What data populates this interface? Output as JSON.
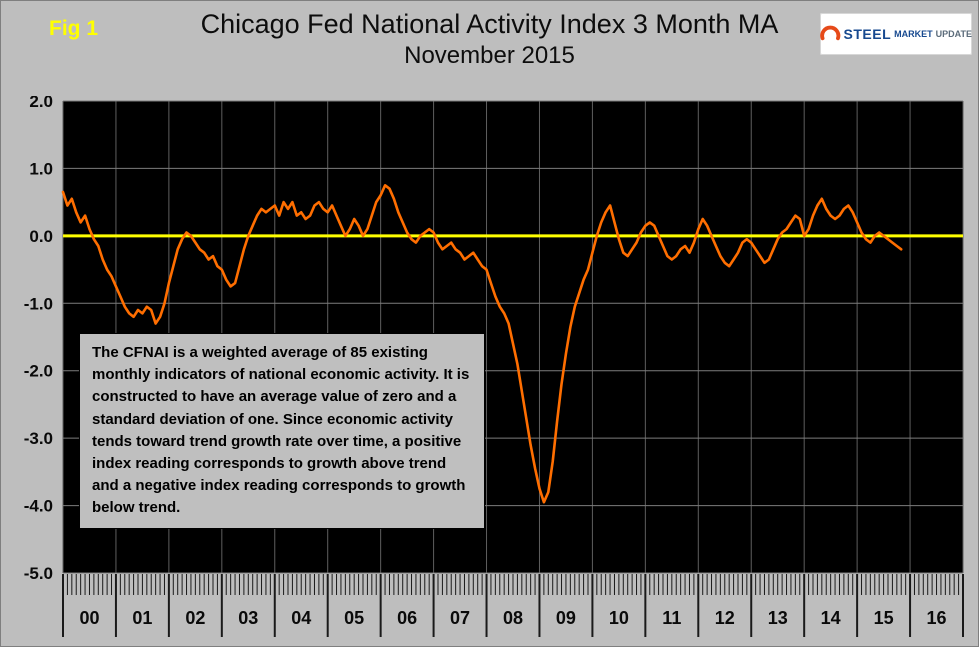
{
  "header": {
    "fig_label": "Fig 1",
    "title_line1": "Chicago Fed National Activity Index 3 Month MA",
    "title_line2": "November 2015",
    "logo": {
      "steel": "STEEL",
      "market": "MARKET",
      "update": "UPDATE"
    }
  },
  "annotation": {
    "text": "The CFNAI is a weighted average of 85 existing monthly indicators of national economic activity. It is constructed to have an average value of zero and a standard deviation of one. Since economic activity tends toward trend growth rate over time, a positive index reading corresponds to growth above trend and a negative index reading corresponds to growth below trend."
  },
  "chart_data": {
    "type": "line",
    "title": "Chicago Fed National Activity Index 3 Month MA",
    "subtitle": "November 2015",
    "ylim": [
      -5.0,
      2.0
    ],
    "y_ticks": [
      "2.0",
      "1.0",
      "0.0",
      "-1.0",
      "-2.0",
      "-3.0",
      "-4.0",
      "-5.0"
    ],
    "x_labels": [
      "00",
      "01",
      "02",
      "03",
      "04",
      "05",
      "06",
      "07",
      "08",
      "09",
      "10",
      "11",
      "12",
      "13",
      "14",
      "15",
      "16"
    ],
    "x_range_years": [
      2000,
      2017
    ],
    "grid": true,
    "legend": "none",
    "plot_bg": "#000000",
    "page_bg": "#BEBEBE",
    "grid_color_h": "#7d7d7d",
    "grid_color_v": "#5f5f5f",
    "zero_line_color": "#FFFF00",
    "line_color": "#FF6E00",
    "series": [
      {
        "name": "CFNAI 3 Month Moving Average",
        "start_year": 2000,
        "start_month": 1,
        "frequency": "monthly",
        "values": [
          0.65,
          0.45,
          0.55,
          0.35,
          0.2,
          0.3,
          0.1,
          -0.05,
          -0.15,
          -0.35,
          -0.5,
          -0.6,
          -0.75,
          -0.9,
          -1.05,
          -1.15,
          -1.2,
          -1.1,
          -1.15,
          -1.05,
          -1.1,
          -1.3,
          -1.2,
          -1.0,
          -0.7,
          -0.45,
          -0.2,
          -0.05,
          0.05,
          0.0,
          -0.1,
          -0.2,
          -0.25,
          -0.35,
          -0.3,
          -0.45,
          -0.5,
          -0.65,
          -0.75,
          -0.7,
          -0.45,
          -0.2,
          0.0,
          0.15,
          0.3,
          0.4,
          0.35,
          0.4,
          0.45,
          0.3,
          0.5,
          0.4,
          0.5,
          0.3,
          0.35,
          0.25,
          0.3,
          0.45,
          0.5,
          0.4,
          0.35,
          0.45,
          0.3,
          0.15,
          0.0,
          0.1,
          0.25,
          0.15,
          0.0,
          0.1,
          0.3,
          0.5,
          0.6,
          0.75,
          0.7,
          0.55,
          0.35,
          0.2,
          0.05,
          -0.05,
          -0.1,
          0.0,
          0.05,
          0.1,
          0.05,
          -0.1,
          -0.2,
          -0.15,
          -0.1,
          -0.2,
          -0.25,
          -0.35,
          -0.3,
          -0.25,
          -0.35,
          -0.45,
          -0.5,
          -0.7,
          -0.9,
          -1.05,
          -1.15,
          -1.3,
          -1.6,
          -1.9,
          -2.3,
          -2.7,
          -3.1,
          -3.45,
          -3.75,
          -3.95,
          -3.8,
          -3.35,
          -2.75,
          -2.2,
          -1.75,
          -1.35,
          -1.05,
          -0.85,
          -0.65,
          -0.5,
          -0.25,
          0.0,
          0.2,
          0.35,
          0.45,
          0.2,
          -0.05,
          -0.25,
          -0.3,
          -0.2,
          -0.1,
          0.05,
          0.15,
          0.2,
          0.15,
          0.0,
          -0.15,
          -0.3,
          -0.35,
          -0.3,
          -0.2,
          -0.15,
          -0.25,
          -0.1,
          0.1,
          0.25,
          0.15,
          0.0,
          -0.15,
          -0.3,
          -0.4,
          -0.45,
          -0.35,
          -0.25,
          -0.1,
          -0.05,
          -0.1,
          -0.2,
          -0.3,
          -0.4,
          -0.35,
          -0.2,
          -0.05,
          0.05,
          0.1,
          0.2,
          0.3,
          0.25,
          0.0,
          0.1,
          0.3,
          0.45,
          0.55,
          0.4,
          0.3,
          0.25,
          0.3,
          0.4,
          0.45,
          0.35,
          0.2,
          0.05,
          -0.05,
          -0.1,
          0.0,
          0.05,
          0.0,
          -0.05,
          -0.1,
          -0.15,
          -0.2
        ]
      }
    ]
  }
}
